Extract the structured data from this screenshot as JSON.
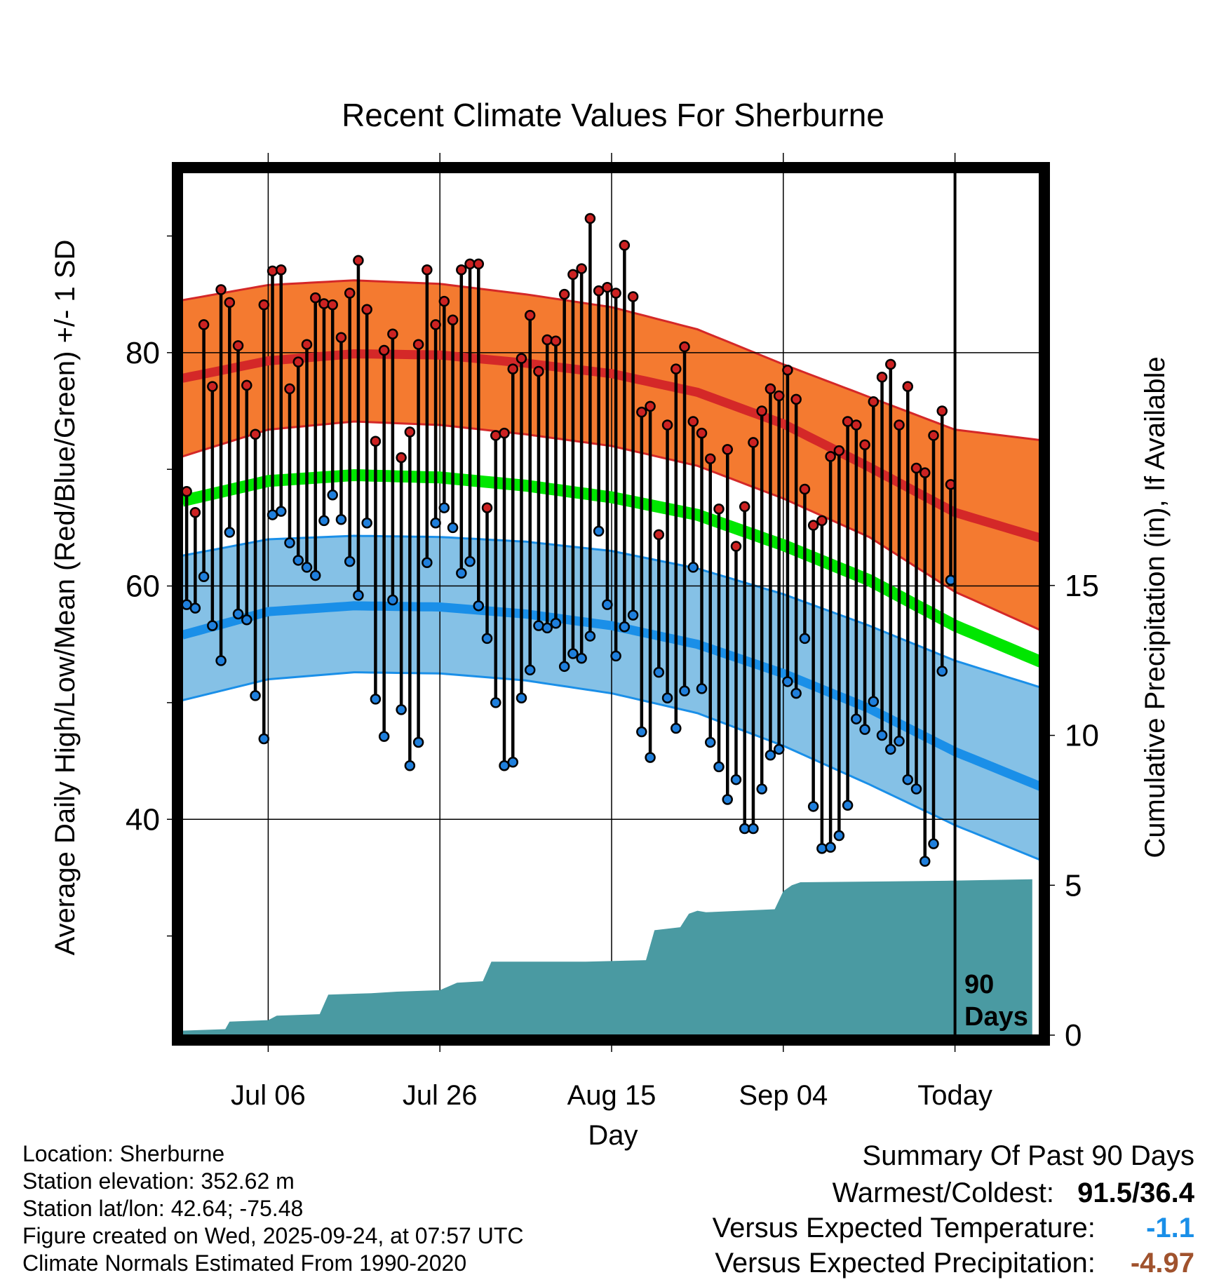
{
  "chart_data": {
    "type": "line",
    "title": "Recent Climate Values For Sherburne",
    "xlabel": "Day",
    "ylabel": "Average Daily High/Low/Mean (Red/Blue/Green) +/- 1 SD",
    "y2label": "Cumulative Precipitation (in), If Available",
    "ylim": [
      21.5,
      95.5
    ],
    "y2lim": [
      0,
      28.8
    ],
    "xlim": [
      0,
      100
    ],
    "y_ticks": [
      "40",
      "60",
      "80"
    ],
    "y2_ticks": [
      "0",
      "5",
      "10",
      "15"
    ],
    "x_ticks": [
      {
        "day": 10,
        "label": "Jul 06"
      },
      {
        "day": 30,
        "label": "Jul 26"
      },
      {
        "day": 50,
        "label": "Aug 15"
      },
      {
        "day": 70,
        "label": "Sep 04"
      },
      {
        "day": 90,
        "label": "Today"
      }
    ],
    "window_label": [
      "90",
      "Days"
    ],
    "grid": true,
    "normals": {
      "high_mean": [
        [
          0,
          77.8
        ],
        [
          10,
          79.3
        ],
        [
          20,
          79.9
        ],
        [
          30,
          79.8
        ],
        [
          40,
          79.1
        ],
        [
          50,
          78.2
        ],
        [
          60,
          76.6
        ],
        [
          70,
          73.9
        ],
        [
          80,
          70.2
        ],
        [
          90,
          66.3
        ],
        [
          100,
          64.1
        ]
      ],
      "high_upper": [
        [
          0,
          84.5
        ],
        [
          10,
          85.8
        ],
        [
          20,
          86.2
        ],
        [
          30,
          85.9
        ],
        [
          40,
          85.0
        ],
        [
          50,
          83.9
        ],
        [
          60,
          82.0
        ],
        [
          70,
          79.0
        ],
        [
          80,
          76.2
        ],
        [
          90,
          73.4
        ],
        [
          100,
          72.5
        ]
      ],
      "high_lower": [
        [
          0,
          71.1
        ],
        [
          10,
          73.4
        ],
        [
          20,
          74.1
        ],
        [
          30,
          73.8
        ],
        [
          40,
          73.0
        ],
        [
          50,
          72.0
        ],
        [
          60,
          70.3
        ],
        [
          70,
          67.5
        ],
        [
          80,
          64.2
        ],
        [
          90,
          59.5
        ],
        [
          100,
          56.2
        ]
      ],
      "mean": [
        [
          0,
          67.3
        ],
        [
          10,
          69.0
        ],
        [
          20,
          69.5
        ],
        [
          30,
          69.3
        ],
        [
          40,
          68.6
        ],
        [
          50,
          67.6
        ],
        [
          60,
          66.1
        ],
        [
          70,
          63.5
        ],
        [
          80,
          60.5
        ],
        [
          90,
          56.6
        ],
        [
          100,
          53.5
        ]
      ],
      "low_mean": [
        [
          0,
          55.8
        ],
        [
          10,
          57.8
        ],
        [
          20,
          58.3
        ],
        [
          30,
          58.2
        ],
        [
          40,
          57.6
        ],
        [
          50,
          56.6
        ],
        [
          60,
          55.0
        ],
        [
          70,
          52.5
        ],
        [
          80,
          49.5
        ],
        [
          90,
          45.8
        ],
        [
          100,
          42.8
        ]
      ],
      "low_upper": [
        [
          0,
          62.6
        ],
        [
          10,
          64.0
        ],
        [
          20,
          64.3
        ],
        [
          30,
          64.2
        ],
        [
          40,
          63.8
        ],
        [
          50,
          63.0
        ],
        [
          60,
          61.5
        ],
        [
          70,
          59.3
        ],
        [
          80,
          56.6
        ],
        [
          90,
          53.6
        ],
        [
          100,
          51.3
        ]
      ],
      "low_lower": [
        [
          0,
          50.2
        ],
        [
          10,
          52.0
        ],
        [
          20,
          52.6
        ],
        [
          30,
          52.5
        ],
        [
          40,
          51.9
        ],
        [
          50,
          50.8
        ],
        [
          60,
          49.1
        ],
        [
          70,
          46.3
        ],
        [
          80,
          43.0
        ],
        [
          90,
          39.5
        ],
        [
          100,
          36.5
        ]
      ]
    },
    "observed_days": [
      0,
      1,
      2,
      3,
      4,
      5,
      6,
      7,
      8,
      9,
      10,
      11,
      12,
      13,
      14,
      15,
      16,
      17,
      18,
      19,
      20,
      21,
      22,
      23,
      24,
      25,
      26,
      27,
      28,
      29,
      30,
      31,
      32,
      33,
      34,
      35,
      36,
      37,
      38,
      39,
      40,
      41,
      42,
      43,
      44,
      45,
      46,
      47,
      48,
      49,
      50,
      51,
      52,
      53,
      54,
      55,
      56,
      57,
      58,
      59,
      60,
      61,
      62,
      63,
      64,
      65,
      66,
      67,
      68,
      69,
      70,
      71,
      72,
      73,
      74,
      75,
      76,
      77,
      78,
      79,
      80,
      81,
      82,
      83,
      84,
      85,
      86,
      87,
      88,
      89
    ],
    "observed_highs": [
      68.1,
      66.3,
      82.4,
      77.1,
      85.4,
      84.3,
      80.6,
      77.2,
      73.0,
      84.1,
      87.0,
      87.1,
      76.9,
      79.2,
      80.7,
      84.7,
      84.2,
      84.1,
      81.3,
      85.1,
      87.9,
      83.7,
      72.4,
      80.2,
      81.6,
      71.0,
      73.2,
      80.7,
      87.1,
      82.4,
      84.4,
      82.8,
      87.1,
      87.6,
      87.6,
      66.7,
      72.9,
      73.1,
      78.6,
      79.5,
      83.2,
      78.4,
      81.1,
      81.0,
      85.0,
      86.7,
      87.2,
      91.5,
      85.3,
      85.6,
      85.1,
      89.2,
      84.8,
      74.9,
      75.4,
      64.4,
      73.8,
      78.6,
      80.5,
      74.1,
      73.1,
      70.9,
      66.6,
      71.7,
      63.4,
      66.8,
      72.3,
      75.0,
      76.9,
      76.3,
      78.5,
      76.0,
      68.3,
      65.2,
      65.6,
      71.1,
      71.6,
      74.1,
      73.8,
      72.1,
      75.8,
      77.9,
      79.0,
      73.8,
      77.1,
      70.1,
      69.7,
      72.9,
      75.0,
      68.7
    ],
    "observed_lows": [
      58.4,
      58.1,
      60.8,
      56.6,
      53.6,
      64.6,
      57.6,
      57.1,
      50.6,
      46.9,
      66.1,
      66.4,
      63.7,
      62.2,
      61.6,
      60.9,
      65.6,
      67.8,
      65.7,
      62.1,
      59.2,
      65.4,
      50.3,
      47.1,
      58.8,
      49.4,
      44.6,
      46.6,
      62.0,
      65.4,
      66.7,
      65.0,
      61.1,
      62.1,
      58.3,
      55.5,
      50.0,
      44.6,
      44.9,
      50.4,
      52.8,
      56.6,
      56.4,
      56.8,
      53.1,
      54.2,
      53.8,
      55.7,
      64.7,
      58.4,
      54.0,
      56.5,
      57.5,
      47.5,
      45.3,
      52.6,
      50.4,
      47.8,
      51.0,
      61.6,
      51.2,
      46.6,
      44.5,
      41.7,
      43.4,
      39.2,
      39.2,
      42.6,
      45.5,
      46.0,
      51.8,
      50.8,
      55.5,
      41.1,
      37.5,
      37.6,
      38.6,
      41.2,
      48.6,
      47.7,
      50.1,
      47.2,
      46.0,
      46.7,
      43.4,
      42.6,
      36.4,
      37.9,
      52.7,
      60.5
    ],
    "precip_cumulative": [
      [
        0,
        0.15
      ],
      [
        5,
        0.2
      ],
      [
        5.5,
        0.45
      ],
      [
        10,
        0.5
      ],
      [
        11,
        0.65
      ],
      [
        16,
        0.7
      ],
      [
        17,
        1.35
      ],
      [
        22,
        1.4
      ],
      [
        25,
        1.45
      ],
      [
        30,
        1.5
      ],
      [
        32,
        1.75
      ],
      [
        35,
        1.8
      ],
      [
        36,
        2.45
      ],
      [
        47,
        2.45
      ],
      [
        54,
        2.5
      ],
      [
        55,
        3.5
      ],
      [
        58,
        3.6
      ],
      [
        59,
        4.05
      ],
      [
        60,
        4.15
      ],
      [
        61,
        4.1
      ],
      [
        69,
        4.2
      ],
      [
        70,
        4.8
      ],
      [
        71,
        5.0
      ],
      [
        72,
        5.1
      ],
      [
        89,
        5.15
      ],
      [
        99,
        5.2
      ]
    ]
  },
  "footer": {
    "location": "Location: Sherburne",
    "elevation": "Station elevation: 352.62 m",
    "latlon": "Station lat/lon: 42.64; -75.48",
    "created": "Figure created on Wed, 2025-09-24, at 07:57 UTC",
    "normals": "Climate Normals Estimated From 1990-2020"
  },
  "summary": {
    "title": "Summary Of Past 90 Days",
    "extremes_label": "Warmest/Coldest:",
    "warmest": "91.5",
    "sep": "/",
    "coldest": "36.4",
    "temp_label": "Versus Expected Temperature:",
    "temp_value": "-1.1",
    "temp_color": "#1a8fe8",
    "precip_label": "Versus Expected Precipitation:",
    "precip_value": "-4.97",
    "precip_color": "#a0522d"
  },
  "colors": {
    "high_band": "#f47a30",
    "high_line": "#d42828",
    "low_band": "#85c1e6",
    "low_line": "#1a8fe8",
    "mean_line": "#00e600",
    "precip_fill": "#4a9aa2",
    "high_dot": "#cc2222",
    "low_dot": "#1f7fdc"
  }
}
